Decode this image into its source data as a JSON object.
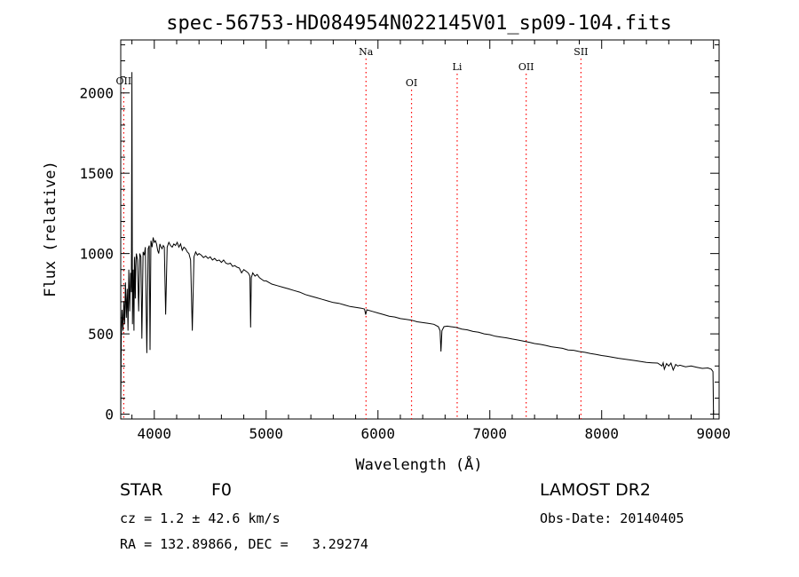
{
  "chart_data": {
    "type": "line",
    "title": "spec-56753-HD084954N022145V01_sp09-104.fits",
    "xlabel": "Wavelength (Å)",
    "ylabel": "Flux (relative)",
    "xlim": [
      3700,
      9050
    ],
    "ylim": [
      -30,
      2330
    ],
    "x_ticks": [
      4000,
      5000,
      6000,
      7000,
      8000,
      9000
    ],
    "y_ticks": [
      0,
      500,
      1000,
      1500,
      2000
    ],
    "grid": false,
    "line_color": "#000000",
    "marker_color": "#ff0000",
    "series": [
      {
        "x": [
          3700,
          3705,
          3712,
          3720,
          3728,
          3735,
          3742,
          3750,
          3758,
          3765,
          3772,
          3780,
          3788,
          3795,
          3800,
          3805,
          3812,
          3818,
          3822,
          3825,
          3830,
          3835,
          3840,
          3850,
          3860,
          3870,
          3880,
          3889,
          3900,
          3910,
          3920,
          3933,
          3945,
          3955,
          3962,
          3970,
          3980,
          3990,
          4000,
          4010,
          4020,
          4030,
          4040,
          4050,
          4060,
          4070,
          4080,
          4090,
          4102,
          4115,
          4130,
          4145,
          4160,
          4175,
          4190,
          4205,
          4220,
          4235,
          4250,
          4265,
          4280,
          4295,
          4310,
          4325,
          4340,
          4355,
          4370,
          4385,
          4400,
          4420,
          4440,
          4460,
          4480,
          4500,
          4520,
          4540,
          4560,
          4580,
          4600,
          4620,
          4640,
          4660,
          4680,
          4700,
          4720,
          4740,
          4760,
          4780,
          4800,
          4820,
          4840,
          4855,
          4861,
          4868,
          4880,
          4900,
          4920,
          4940,
          4960,
          4980,
          5000,
          5050,
          5100,
          5150,
          5200,
          5250,
          5300,
          5350,
          5400,
          5450,
          5500,
          5550,
          5600,
          5650,
          5700,
          5750,
          5800,
          5850,
          5880,
          5890,
          5900,
          5950,
          6000,
          6050,
          6100,
          6150,
          6200,
          6250,
          6300,
          6350,
          6400,
          6450,
          6500,
          6540,
          6555,
          6563,
          6572,
          6590,
          6620,
          6650,
          6700,
          6750,
          6800,
          6850,
          6900,
          6950,
          7000,
          7050,
          7100,
          7150,
          7200,
          7250,
          7300,
          7350,
          7400,
          7450,
          7500,
          7550,
          7600,
          7650,
          7700,
          7750,
          7800,
          7850,
          7900,
          7950,
          8000,
          8050,
          8100,
          8150,
          8200,
          8250,
          8300,
          8350,
          8400,
          8450,
          8500,
          8540,
          8550,
          8560,
          8580,
          8600,
          8620,
          8640,
          8662,
          8680,
          8700,
          8750,
          8800,
          8850,
          8900,
          8950,
          8980,
          8995,
          9000
        ],
        "y": [
          0,
          480,
          650,
          520,
          700,
          560,
          820,
          600,
          780,
          520,
          900,
          640,
          880,
          760,
          2130,
          560,
          900,
          520,
          960,
          980,
          720,
          920,
          1000,
          960,
          640,
          1000,
          980,
          470,
          1010,
          990,
          1040,
          380,
          1030,
          1050,
          400,
          1080,
          1040,
          1100,
          1070,
          1080,
          1060,
          1020,
          1000,
          1060,
          1040,
          1030,
          1050,
          1040,
          620,
          1040,
          1070,
          1050,
          1040,
          1060,
          1050,
          1070,
          1040,
          1060,
          1020,
          1040,
          1030,
          1010,
          1000,
          960,
          520,
          980,
          1010,
          990,
          1000,
          990,
          975,
          985,
          970,
          980,
          960,
          970,
          955,
          960,
          945,
          960,
          940,
          935,
          940,
          920,
          925,
          915,
          910,
          880,
          900,
          890,
          880,
          860,
          540,
          850,
          880,
          860,
          870,
          850,
          840,
          830,
          830,
          810,
          800,
          790,
          780,
          770,
          760,
          745,
          735,
          725,
          715,
          705,
          695,
          690,
          680,
          670,
          665,
          660,
          655,
          620,
          650,
          640,
          630,
          620,
          610,
          605,
          595,
          590,
          585,
          575,
          570,
          565,
          560,
          545,
          520,
          390,
          520,
          545,
          548,
          545,
          540,
          530,
          525,
          515,
          510,
          500,
          495,
          485,
          480,
          475,
          468,
          462,
          455,
          448,
          440,
          435,
          428,
          420,
          415,
          410,
          400,
          398,
          390,
          385,
          378,
          372,
          365,
          360,
          354,
          348,
          343,
          338,
          333,
          328,
          322,
          320,
          318,
          300,
          320,
          280,
          315,
          300,
          318,
          275,
          310,
          300,
          305,
          295,
          300,
          292,
          285,
          288,
          280,
          265,
          0
        ]
      }
    ],
    "line_markers": [
      {
        "label": "OII",
        "x": 3727
      },
      {
        "label": "Na",
        "x": 5893
      },
      {
        "label": "OI",
        "x": 6300
      },
      {
        "label": "Li",
        "x": 6708
      },
      {
        "label": "OII",
        "x": 7325
      },
      {
        "label": "SII",
        "x": 7815
      }
    ]
  },
  "info": {
    "class_label": "STAR",
    "subclass": "F0",
    "survey": "LAMOST DR2",
    "cz": "cz = 1.2 ± 42.6 km/s",
    "obs_date": "Obs-Date: 20140405",
    "coords": "RA = 132.89866, DEC =   3.29274"
  }
}
